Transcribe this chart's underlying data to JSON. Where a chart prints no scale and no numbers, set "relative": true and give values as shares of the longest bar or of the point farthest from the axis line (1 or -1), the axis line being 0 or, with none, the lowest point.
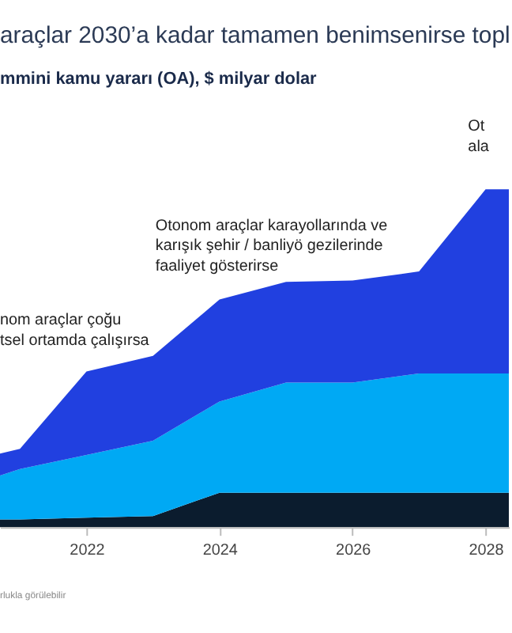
{
  "chart_data": {
    "type": "area",
    "title": "araçlar 2030’a kadar tamamen benimsenirse topl",
    "subtitle": "mmini kamu yararı (OA), $ milyar dolar",
    "stacked": true,
    "relative": true,
    "x": [
      2020.7,
      2021,
      2022,
      2023,
      2024,
      2025,
      2026,
      2027,
      2028,
      2028.35
    ],
    "series": [
      {
        "color": "#0b1c2e",
        "values": [
          0.023,
          0.023,
          0.028,
          0.033,
          0.102,
          0.102,
          0.102,
          0.102,
          0.102,
          0.102
        ]
      },
      {
        "color": "#00a9f4",
        "values": [
          0.13,
          0.149,
          0.186,
          0.223,
          0.27,
          0.326,
          0.326,
          0.353,
          0.353,
          0.353
        ]
      },
      {
        "color": "#2140e0",
        "values": [
          0.065,
          0.06,
          0.247,
          0.251,
          0.302,
          0.298,
          0.302,
          0.302,
          0.545,
          0.545
        ]
      }
    ],
    "xlim": [
      2020.7,
      2028.35
    ],
    "xticks": [
      2022,
      2024,
      2026,
      2028
    ],
    "grid": false,
    "annotations": [
      "Otonom araçlar karayollarında ve\nkarışık şehir / banliyö gezilerinde\nfaaliyet gösterirse",
      "nom araçlar çoğu\ntsel ortamda çalışırsa",
      "Ot\nala",
      "rlukla görülebilir"
    ]
  }
}
